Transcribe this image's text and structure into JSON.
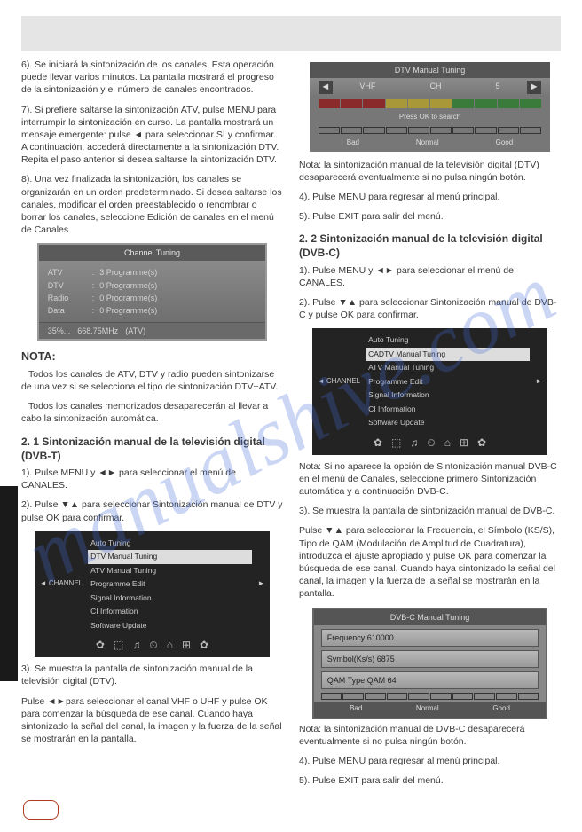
{
  "watermark": "manualshive.com",
  "left": {
    "p6": "6). Se iniciará la sintonización de los canales. Esta operación puede llevar varios minutos. La pantalla mostrará el progreso de la sintonización y el número de canales encontrados.",
    "p7": "7). Si prefiere saltarse la sintonización ATV, pulse MENU para interrumpir la sintonización en curso. La pantalla mostrará un mensaje emergente: pulse ◄ para seleccionar SÍ y confirmar. A continuación, accederá directamente a la sintonización DTV. Repita el paso anterior si desea saltarse la sintonización DTV.",
    "p8": "8). Una vez finalizada la sintonización, los canales se organizarán en un orden predeterminado. Si desea saltarse los canales, modificar el orden preestablecido o renombrar o borrar los canales, seleccione Edición de canales en el menú de Canales.",
    "ct_title": "Channel Tuning",
    "ct_rows": [
      [
        "ATV",
        ":",
        "3 Programme(s)"
      ],
      [
        "DTV",
        ":",
        "0 Programme(s)"
      ],
      [
        "Radio",
        ":",
        "0 Programme(s)"
      ],
      [
        "Data",
        ":",
        "0 Programme(s)"
      ]
    ],
    "ct_foot": [
      "35%...",
      "668.75MHz",
      "(ATV)"
    ],
    "nota_h": "NOTA:",
    "nota1": "Todos los canales de ATV, DTV y radio pueden sintonizarse de una vez si se selecciona el tipo de sintonización DTV+ATV.",
    "nota2": "Todos los canales memorizados desaparecerán al llevar a cabo la sintonización automática.",
    "s21_h": "2. 1 Sintonización manual de la televisión digital (DVB-T)",
    "s21_1": "1). Pulse MENU y ◄► para seleccionar el menú de CANALES.",
    "s21_2": "2). Pulse ▼▲ para seleccionar Sintonización manual de DTV y pulse OK para confirmar.",
    "dpanel1": {
      "lines": [
        "Auto Tuning",
        "DTV Manual Tuning",
        "ATV Manual Tuning",
        "Programme Edit",
        "Signal Information",
        "CI Information",
        "Software Update"
      ],
      "hl_index": 1,
      "nav_l": "◄ CHANNEL",
      "nav_r": "►",
      "icons": [
        "✿",
        "⬚",
        "♫",
        "⏲",
        "⌂",
        "⊞",
        "✿"
      ]
    },
    "s21_3": "3). Se muestra la pantalla de sintonización manual de la televisión digital (DTV).",
    "s21_3b": "Pulse ◄►para seleccionar el canal VHF o UHF y pulse OK para comenzar la búsqueda de ese canal. Cuando haya sintonizado la señal del canal, la imagen y la fuerza de la señal se mostrarán en la pantalla."
  },
  "right": {
    "tune_title": "DTV Manual Tuning",
    "tune_mid": [
      "VHF",
      "CH",
      "5"
    ],
    "tune_ok": "Press OK to search",
    "tune_stat": [
      "Bad",
      "Normal",
      "Good"
    ],
    "nota_right": "Nota: la sintonización manual de la televisión digital (DTV) desaparecerá eventualmente si no pulsa ningún botón.",
    "p4": "4). Pulse MENU para regresar al menú principal.",
    "p5": "5). Pulse EXIT para salir del menú.",
    "s22_h": "2. 2 Sintonización manual de la televisión digital (DVB-C)",
    "s22_1": "1). Pulse MENU y ◄► para seleccionar el menú de CANALES.",
    "s22_2": "2). Pulse ▼▲ para seleccionar Sintonización manual de DVB-C y pulse OK para confirmar.",
    "dpanel2": {
      "lines": [
        "Auto Tuning",
        "CADTV Manual Tuning",
        "ATV Manual Tuning",
        "Programme Edit",
        "Signal Information",
        "CI Information",
        "Software Update"
      ],
      "hl_index": 1,
      "nav_l": "◄ CHANNEL",
      "nav_r": "►",
      "icons": [
        "✿",
        "⬚",
        "♫",
        "⏲",
        "⌂",
        "⊞",
        "✿"
      ]
    },
    "nota2r": "Nota: Si no aparece la opción de Sintonización manual DVB-C en el menú de Canales, seleccione primero Sintonización automática y a continuación DVB-C.",
    "s22_3a": "3). Se muestra la pantalla de sintonización manual de DVB-C.",
    "s22_3b": "Pulse ▼▲ para seleccionar la Frecuencia, el Símbolo (KS/S), Tipo de QAM (Modulación de Amplitud de Cuadratura), introduzca el ajuste apropiado y pulse OK para comenzar la búsqueda de ese canal. Cuando haya sintonizado la señal del canal, la imagen y la fuerza de la señal se mostrarán en la pantalla.",
    "dvbc_title": "DVB-C Manual Tuning",
    "dvbc_rows": [
      "Frequency 610000",
      "Symbol(Ks/s) 6875",
      "QAM Type QAM 64"
    ],
    "dvbc_stat": [
      "Bad",
      "Normal",
      "Good"
    ],
    "nota3r": "Nota: la sintonización manual de DVB-C desaparecerá eventualmente si no pulsa ningún botón.",
    "p4b": "4). Pulse MENU para regresar al menú principal.",
    "p5b": "5). Pulse EXIT para salir del menú."
  }
}
